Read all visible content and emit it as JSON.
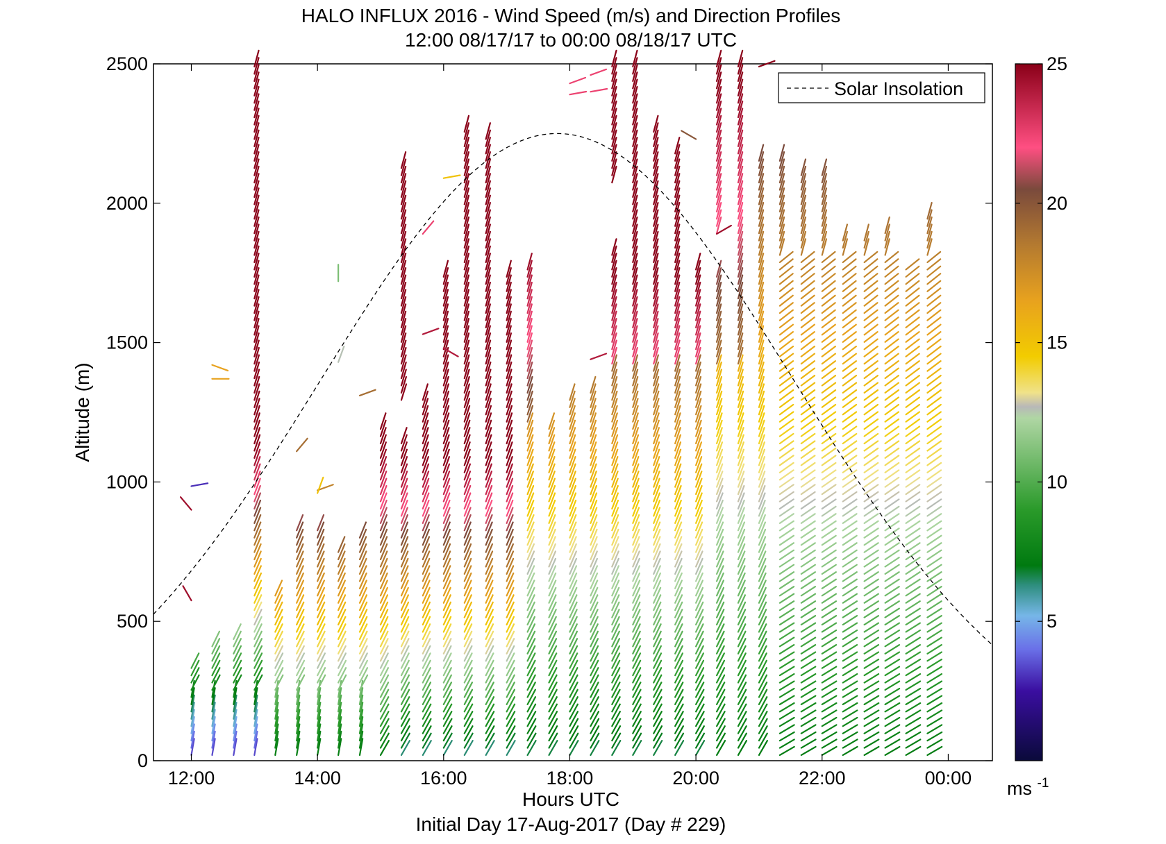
{
  "chart_data": {
    "type": "scatter",
    "marker": "wind-barb",
    "title": "HALO INFLUX 2016 - Wind Speed (m/s) and Direction Profiles",
    "subtitle": "12:00 08/17/17 to 00:00 08/18/17  UTC",
    "xlabel": "Hours UTC",
    "xlabel2": "Initial Day 17-Aug-2017 (Day # 229)",
    "ylabel": "Altitude (m)",
    "xlim_hours": [
      11.4,
      24.7
    ],
    "ylim": [
      0,
      2500
    ],
    "xticks": [
      {
        "value": 12,
        "label": "12:00"
      },
      {
        "value": 14,
        "label": "14:00"
      },
      {
        "value": 16,
        "label": "16:00"
      },
      {
        "value": 18,
        "label": "18:00"
      },
      {
        "value": 20,
        "label": "20:00"
      },
      {
        "value": 22,
        "label": "22:00"
      },
      {
        "value": 24,
        "label": "00:00"
      }
    ],
    "yticks": [
      0,
      500,
      1000,
      1500,
      2000,
      2500
    ],
    "colorbar": {
      "range": [
        0,
        25
      ],
      "ticks": [
        5,
        10,
        15,
        20,
        25
      ],
      "unit_label": "ms",
      "unit_exponent": "-1",
      "stops": [
        {
          "v": 0,
          "c": "#0a0a3a"
        },
        {
          "v": 2.5,
          "c": "#3a0ea0"
        },
        {
          "v": 4,
          "c": "#6a70e8"
        },
        {
          "v": 5.2,
          "c": "#76b6e8"
        },
        {
          "v": 6.3,
          "c": "#2e8e7e"
        },
        {
          "v": 7.0,
          "c": "#007a10"
        },
        {
          "v": 9.0,
          "c": "#2a9a2a"
        },
        {
          "v": 12.3,
          "c": "#b0d6a4"
        },
        {
          "v": 12.7,
          "c": "#b8b8b8"
        },
        {
          "v": 13.2,
          "c": "#f0e28a"
        },
        {
          "v": 14.5,
          "c": "#f2cc00"
        },
        {
          "v": 16.5,
          "c": "#e8a21e"
        },
        {
          "v": 18.5,
          "c": "#b47a30"
        },
        {
          "v": 20.5,
          "c": "#7a4a3c"
        },
        {
          "v": 22,
          "c": "#ff4f82"
        },
        {
          "v": 25,
          "c": "#8a0018"
        }
      ]
    },
    "solar_insolation": {
      "name": "Solar Insolation",
      "style": "dashed",
      "color": "#000000",
      "peak_hour": 17.8,
      "peak_altitude": 2250,
      "half_width_hours": 6.5,
      "points": [
        {
          "x": 11.4,
          "y": 270
        },
        {
          "x": 12.0,
          "y": 560
        },
        {
          "x": 13.0,
          "y": 1000
        },
        {
          "x": 14.0,
          "y": 1420
        },
        {
          "x": 15.0,
          "y": 1780
        },
        {
          "x": 16.0,
          "y": 2060
        },
        {
          "x": 17.0,
          "y": 2220
        },
        {
          "x": 17.8,
          "y": 2250
        },
        {
          "x": 19.0,
          "y": 2180
        },
        {
          "x": 20.0,
          "y": 1990
        },
        {
          "x": 21.0,
          "y": 1710
        },
        {
          "x": 22.0,
          "y": 1360
        },
        {
          "x": 23.0,
          "y": 950
        },
        {
          "x": 24.0,
          "y": 490
        },
        {
          "x": 24.7,
          "y": 110
        }
      ]
    },
    "profiles": [
      {
        "t": 12.0,
        "top": 350,
        "gaps": [],
        "iso": [
          {
            "z": 985,
            "s": 3,
            "d": 260
          },
          {
            "z": 900,
            "s": 24.5,
            "d": 140
          },
          {
            "z": 575,
            "s": 24.5,
            "d": 150
          }
        ]
      },
      {
        "t": 12.33,
        "top": 420,
        "gaps": [],
        "iso": [
          {
            "z": 1420,
            "s": 16.5,
            "d": 290
          },
          {
            "z": 1370,
            "s": 16.5,
            "d": 270
          }
        ]
      },
      {
        "t": 12.67,
        "top": 440,
        "gaps": [],
        "iso": []
      },
      {
        "t": 13.0,
        "top": 2500,
        "gaps": [],
        "iso": []
      },
      {
        "t": 13.33,
        "top": 610,
        "gaps": [],
        "iso": []
      },
      {
        "t": 13.67,
        "top": 830,
        "gaps": [],
        "iso": [
          {
            "z": 1110,
            "s": 19,
            "d": 220
          }
        ]
      },
      {
        "t": 14.0,
        "top": 830,
        "gaps": [],
        "iso": [
          {
            "z": 970,
            "s": 18,
            "d": 250
          },
          {
            "z": 960,
            "s": 15,
            "d": 200
          }
        ]
      },
      {
        "t": 14.33,
        "top": 750,
        "gaps": [],
        "iso": [
          {
            "z": 1720,
            "s": 11,
            "d": 180
          },
          {
            "z": 1430,
            "s": 12.6,
            "d": 200
          }
        ]
      },
      {
        "t": 14.67,
        "top": 800,
        "gaps": [],
        "iso": [
          {
            "z": 1310,
            "s": 19,
            "d": 250
          }
        ]
      },
      {
        "t": 15.0,
        "top": 1210,
        "gaps": [],
        "iso": []
      },
      {
        "t": 15.33,
        "top": 2150,
        "gaps": [
          [
            1160,
            1280
          ]
        ],
        "iso": []
      },
      {
        "t": 15.67,
        "top": 1300,
        "gaps": [],
        "iso": [
          {
            "z": 1890,
            "s": 22.5,
            "d": 220
          },
          {
            "z": 1530,
            "s": 24,
            "d": 250
          }
        ]
      },
      {
        "t": 16.0,
        "top": 1760,
        "gaps": [],
        "iso": [
          {
            "z": 2090,
            "s": 15,
            "d": 260
          },
          {
            "z": 1480,
            "s": 24,
            "d": 300
          }
        ]
      },
      {
        "t": 16.33,
        "top": 2260,
        "gaps": [],
        "iso": []
      },
      {
        "t": 16.67,
        "top": 2230,
        "gaps": [],
        "iso": []
      },
      {
        "t": 17.0,
        "top": 1760,
        "gaps": [],
        "iso": []
      },
      {
        "t": 17.33,
        "top": 1770,
        "gaps": [],
        "iso": []
      },
      {
        "t": 17.67,
        "top": 1190,
        "gaps": [],
        "iso": []
      },
      {
        "t": 18.0,
        "top": 1300,
        "gaps": [],
        "iso": [
          {
            "z": 2430,
            "s": 22.5,
            "d": 250
          },
          {
            "z": 2390,
            "s": 22.5,
            "d": 260
          }
        ]
      },
      {
        "t": 18.33,
        "top": 1340,
        "gaps": [],
        "iso": [
          {
            "z": 1440,
            "s": 24,
            "d": 250
          },
          {
            "z": 2460,
            "s": 22.5,
            "d": 250
          },
          {
            "z": 2400,
            "s": 22.5,
            "d": 260
          }
        ]
      },
      {
        "t": 18.67,
        "top": 2500,
        "gaps": [
          [
            1830,
            2060
          ]
        ],
        "iso": []
      },
      {
        "t": 19.0,
        "top": 2500,
        "gaps": [],
        "iso": []
      },
      {
        "t": 19.33,
        "top": 2280,
        "gaps": [],
        "iso": []
      },
      {
        "t": 19.67,
        "top": 2180,
        "gaps": [],
        "iso": []
      },
      {
        "t": 20.0,
        "top": 1780,
        "gaps": [],
        "iso": [
          {
            "z": 2230,
            "s": 20,
            "d": 120
          }
        ]
      },
      {
        "t": 20.33,
        "top": 2500,
        "gaps": [
          [
            1760,
            1880
          ]
        ],
        "iso": [
          {
            "z": 1890,
            "s": 24.5,
            "d": 240
          }
        ]
      },
      {
        "t": 20.67,
        "top": 2500,
        "gaps": [],
        "iso": []
      },
      {
        "t": 21.0,
        "top": 2160,
        "gaps": [],
        "iso": [
          {
            "z": 2490,
            "s": 25,
            "d": 250
          }
        ]
      },
      {
        "t": 21.33,
        "top": 2170,
        "gaps": [],
        "iso": []
      },
      {
        "t": 21.67,
        "top": 2110,
        "gaps": [],
        "iso": []
      },
      {
        "t": 22.0,
        "top": 2100,
        "gaps": [],
        "iso": []
      },
      {
        "t": 22.33,
        "top": 1870,
        "gaps": [],
        "iso": []
      },
      {
        "t": 22.67,
        "top": 1870,
        "gaps": [],
        "iso": []
      },
      {
        "t": 23.0,
        "top": 1910,
        "gaps": [],
        "iso": []
      },
      {
        "t": 23.33,
        "top": 1780,
        "gaps": [],
        "iso": []
      },
      {
        "t": 23.67,
        "top": 1950,
        "gaps": [],
        "iso": []
      }
    ]
  }
}
